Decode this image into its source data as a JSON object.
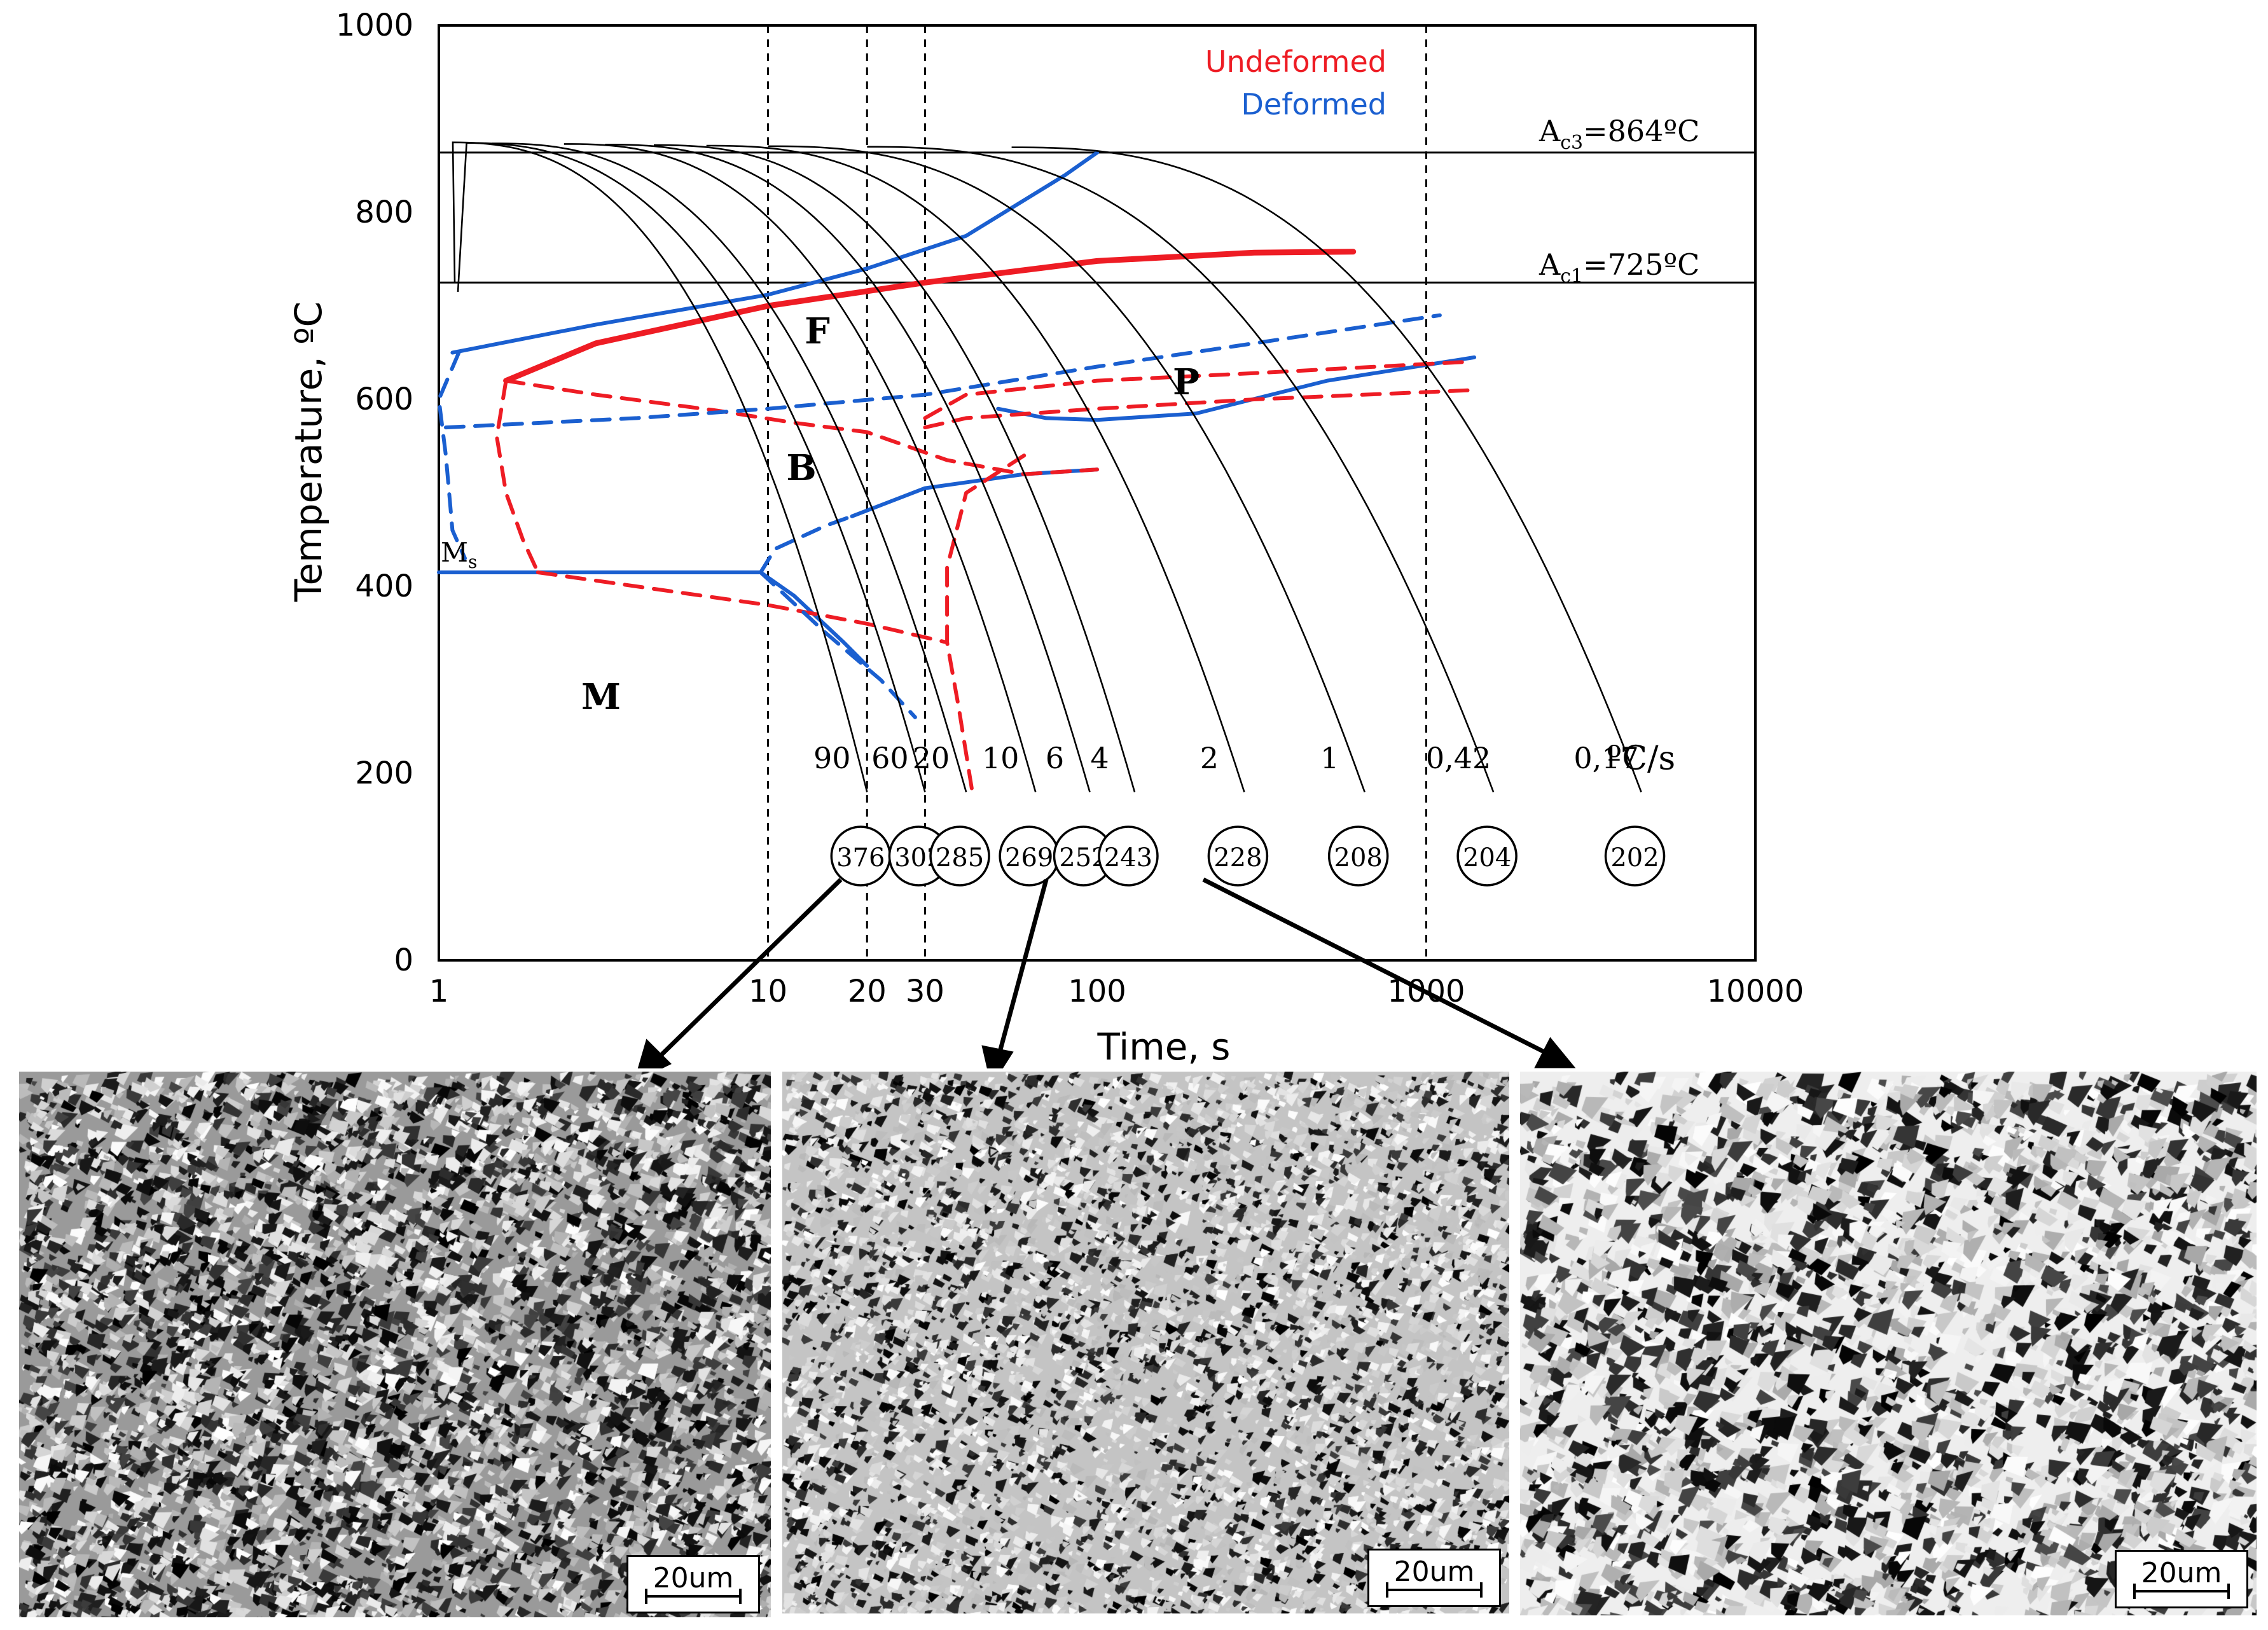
{
  "chart_data": {
    "type": "line",
    "title": "",
    "xlabel": "Time, s",
    "ylabel": "Temperature, ºC",
    "x_scale": "log",
    "xlim": [
      1,
      10000
    ],
    "ylim": [
      0,
      1000
    ],
    "x_ticks": [
      {
        "value": 1,
        "label": "1"
      },
      {
        "value": 10,
        "label": "10"
      },
      {
        "value": 20,
        "label": "20"
      },
      {
        "value": 30,
        "label": "30"
      },
      {
        "value": 100,
        "label": "100"
      },
      {
        "value": 1000,
        "label": "1000"
      },
      {
        "value": 10000,
        "label": "10000"
      }
    ],
    "y_ticks": [
      {
        "value": 0,
        "label": "0"
      },
      {
        "value": 200,
        "label": "200"
      },
      {
        "value": 400,
        "label": "400"
      },
      {
        "value": 600,
        "label": "600"
      },
      {
        "value": 800,
        "label": "800"
      },
      {
        "value": 1000,
        "label": "1000"
      }
    ],
    "vertical_reference_times": [
      10,
      20,
      30,
      1000
    ],
    "legend": [
      {
        "label": "Undeformed",
        "color": "#ee1c24"
      },
      {
        "label": "Deformed",
        "color": "#1a5fd0"
      }
    ],
    "critical_temperatures": [
      {
        "label": "A",
        "sub": "c3",
        "suffix": "=864ºC",
        "y": 864
      },
      {
        "label": "A",
        "sub": "c1",
        "suffix": "=725ºC",
        "y": 725
      }
    ],
    "phase_regions": [
      {
        "label": "F",
        "x": 10,
        "y": 680
      },
      {
        "label": "P",
        "x": 150,
        "y": 610
      },
      {
        "label": "B",
        "x": 11,
        "y": 530
      },
      {
        "label": "M",
        "x": 3,
        "y": 280
      }
    ],
    "ms_label": {
      "main": "M",
      "sub": "s"
    },
    "rate_unit": "ºC/s",
    "cooling_curves": [
      {
        "rate": "90",
        "hardness": "376",
        "start_time": 1.05,
        "end_time": 20
      },
      {
        "rate": "60",
        "hardness": "302",
        "start_time": 1.15,
        "end_time": 30
      },
      {
        "rate": "20",
        "hardness": "285",
        "start_time": 1.45,
        "end_time": 40
      },
      {
        "rate": "10",
        "hardness": "269",
        "start_time": 2.4,
        "end_time": 65
      },
      {
        "rate": "6",
        "hardness": "252",
        "start_time": 3.2,
        "end_time": 95
      },
      {
        "rate": "4",
        "hardness": "243",
        "start_time": 4.5,
        "end_time": 130
      },
      {
        "rate": "2",
        "hardness": "228",
        "start_time": 6.5,
        "end_time": 280
      },
      {
        "rate": "1",
        "hardness": "208",
        "start_time": 10,
        "end_time": 650
      },
      {
        "rate": "0,42",
        "hardness": "204",
        "start_time": 20,
        "end_time": 1600
      },
      {
        "rate": "0,17",
        "hardness": "202",
        "start_time": 55,
        "end_time": 4500
      }
    ],
    "transformation_lines": [
      {
        "series": "Undeformed",
        "style": "solid",
        "points": [
          [
            1.6,
            620
          ],
          [
            3,
            660
          ],
          [
            10,
            700
          ],
          [
            30,
            725
          ],
          [
            100,
            748
          ],
          [
            300,
            757
          ],
          [
            600,
            758
          ]
        ]
      },
      {
        "series": "Deformed",
        "style": "solid",
        "points": [
          [
            1.1,
            650
          ],
          [
            3,
            680
          ],
          [
            10,
            712
          ],
          [
            20,
            740
          ],
          [
            40,
            775
          ],
          [
            80,
            840
          ],
          [
            100,
            864
          ]
        ]
      },
      {
        "series": "Deformed",
        "style": "solid",
        "points": [
          [
            50,
            590
          ],
          [
            70,
            580
          ],
          [
            100,
            578
          ],
          [
            200,
            585
          ],
          [
            500,
            620
          ],
          [
            1400,
            645
          ]
        ]
      },
      {
        "series": "Deformed",
        "style": "solid",
        "points": [
          [
            1,
            415
          ],
          [
            9.5,
            415
          ],
          [
            12,
            390
          ],
          [
            17,
            340
          ],
          [
            20,
            315
          ]
        ]
      },
      {
        "series": "Deformed",
        "style": "solid",
        "points": [
          [
            18,
            475
          ],
          [
            30,
            505
          ],
          [
            60,
            520
          ],
          [
            100,
            525
          ]
        ]
      },
      {
        "series": "Undeformed",
        "style": "dashed",
        "points": [
          [
            1.6,
            620
          ],
          [
            3,
            605
          ],
          [
            7,
            588
          ],
          [
            12,
            575
          ],
          [
            20,
            565
          ],
          [
            35,
            535
          ],
          [
            60,
            520
          ],
          [
            100,
            525
          ]
        ]
      },
      {
        "series": "Undeformed",
        "style": "dashed",
        "points": [
          [
            1.6,
            620
          ],
          [
            1.5,
            560
          ],
          [
            1.6,
            500
          ],
          [
            1.8,
            450
          ],
          [
            2,
            415
          ]
        ]
      },
      {
        "series": "Undeformed",
        "style": "dashed",
        "points": [
          [
            2,
            415
          ],
          [
            10,
            380
          ],
          [
            20,
            360
          ],
          [
            35,
            340
          ]
        ]
      },
      {
        "series": "Undeformed",
        "style": "dashed",
        "points": [
          [
            30,
            580
          ],
          [
            40,
            605
          ],
          [
            100,
            620
          ],
          [
            300,
            628
          ],
          [
            1300,
            640
          ]
        ]
      },
      {
        "series": "Undeformed",
        "style": "dashed",
        "points": [
          [
            30,
            570
          ],
          [
            40,
            580
          ],
          [
            100,
            590
          ],
          [
            300,
            600
          ],
          [
            1400,
            610
          ]
        ]
      },
      {
        "series": "Undeformed",
        "style": "dashed",
        "points": [
          [
            60,
            540
          ],
          [
            40,
            500
          ],
          [
            35,
            420
          ],
          [
            35,
            340
          ],
          [
            38,
            270
          ],
          [
            42,
            175
          ]
        ]
      },
      {
        "series": "Deformed",
        "style": "dashed",
        "points": [
          [
            1.05,
            570
          ],
          [
            4,
            580
          ],
          [
            10,
            590
          ],
          [
            30,
            605
          ],
          [
            100,
            635
          ],
          [
            300,
            660
          ],
          [
            1100,
            690
          ]
        ]
      },
      {
        "series": "Deformed",
        "style": "dashed",
        "points": [
          [
            1.15,
            650
          ],
          [
            1.0,
            600
          ],
          [
            1.05,
            540
          ],
          [
            1.1,
            460
          ],
          [
            1.2,
            430
          ]
        ]
      },
      {
        "series": "Deformed",
        "style": "dashed",
        "points": [
          [
            9.5,
            415
          ],
          [
            10.5,
            440
          ],
          [
            15,
            465
          ],
          [
            18,
            475
          ]
        ]
      },
      {
        "series": "Deformed",
        "style": "dashed",
        "points": [
          [
            9.5,
            415
          ],
          [
            15,
            350
          ],
          [
            22,
            300
          ],
          [
            28,
            260
          ]
        ]
      }
    ]
  },
  "scale_bars": [
    "20um",
    "20um",
    "20um"
  ],
  "colors": {
    "undeformed": "#ee1c24",
    "deformed": "#1a5fd0",
    "axis": "#000000"
  }
}
